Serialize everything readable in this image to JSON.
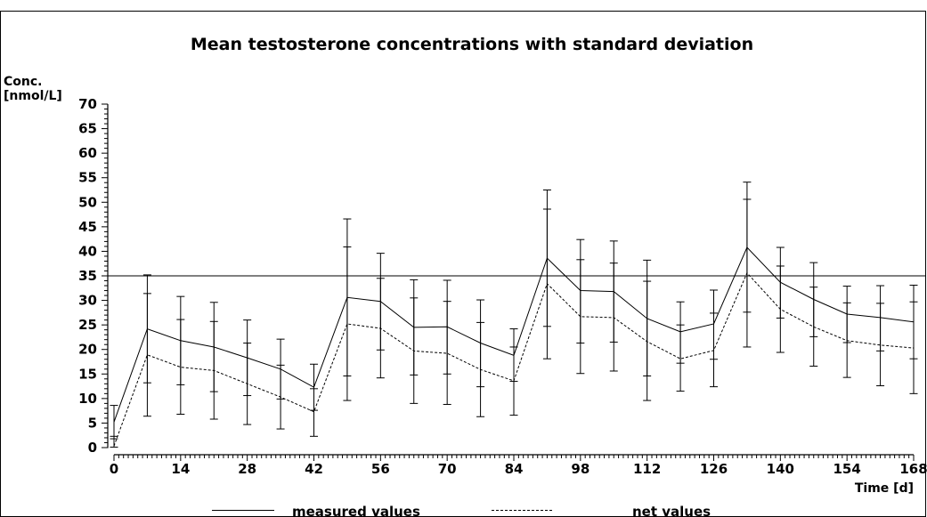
{
  "chart_data": {
    "type": "line",
    "title": "Mean testosterone concentrations with standard deviation",
    "ylabel_line1": "Conc.",
    "ylabel_line2": "[nmol/L]",
    "xlabel": "Time  [d]",
    "xlim": [
      0,
      168
    ],
    "ylim": [
      0,
      70
    ],
    "x_ticks": [
      0,
      14,
      28,
      42,
      56,
      70,
      84,
      98,
      112,
      126,
      140,
      154,
      168
    ],
    "y_ticks": [
      0,
      5,
      10,
      15,
      20,
      25,
      30,
      35,
      40,
      45,
      50,
      55,
      60,
      65,
      70
    ],
    "reference_line": 35,
    "x": [
      0,
      7,
      14,
      21,
      28,
      35,
      42,
      49,
      56,
      63,
      70,
      77,
      84,
      91,
      98,
      105,
      112,
      119,
      126,
      133,
      140,
      147,
      154,
      161,
      168
    ],
    "series": [
      {
        "name": "measured values",
        "style": "solid",
        "values": [
          5.2,
          24.2,
          21.8,
          20.5,
          18.3,
          16.0,
          12.3,
          30.6,
          29.8,
          24.5,
          24.6,
          21.3,
          18.8,
          38.6,
          32.0,
          31.8,
          26.3,
          23.6,
          25.2,
          40.8,
          33.7,
          30.2,
          27.2,
          26.5,
          25.6
        ],
        "sd_low": [
          1.8,
          13.2,
          12.8,
          11.4,
          10.6,
          9.9,
          7.6,
          14.6,
          19.9,
          14.8,
          15.0,
          12.4,
          13.5,
          24.7,
          21.3,
          21.5,
          14.6,
          17.2,
          18.0,
          27.6,
          26.4,
          22.6,
          21.4,
          19.7,
          18.1
        ],
        "sd_high": [
          8.6,
          35.2,
          30.8,
          29.6,
          26.0,
          22.1,
          17.0,
          46.6,
          39.6,
          34.2,
          34.1,
          30.1,
          24.2,
          52.5,
          42.4,
          42.1,
          38.2,
          29.7,
          32.1,
          54.1,
          40.8,
          37.7,
          32.9,
          33.0,
          33.1
        ]
      },
      {
        "name": "net values",
        "style": "dashed",
        "values": [
          0.3,
          18.9,
          16.4,
          15.7,
          13.0,
          10.3,
          7.3,
          25.2,
          24.3,
          19.7,
          19.2,
          15.9,
          13.6,
          33.4,
          26.7,
          26.5,
          21.6,
          18.1,
          19.8,
          35.6,
          28.2,
          24.6,
          21.8,
          20.9,
          20.3
        ],
        "sd_low": [
          0.1,
          6.4,
          6.8,
          5.8,
          4.7,
          3.8,
          2.3,
          9.6,
          14.2,
          9.0,
          8.8,
          6.3,
          6.6,
          18.1,
          15.1,
          15.6,
          9.6,
          11.5,
          12.4,
          20.5,
          19.4,
          16.6,
          14.3,
          12.6,
          11.0
        ],
        "sd_high": [
          2.3,
          31.4,
          26.1,
          25.7,
          21.3,
          16.8,
          12.0,
          40.9,
          34.5,
          30.5,
          29.8,
          25.5,
          20.5,
          48.6,
          38.3,
          37.6,
          33.9,
          25.0,
          27.4,
          50.6,
          37.0,
          32.7,
          29.5,
          29.4,
          29.7
        ]
      }
    ],
    "legend": {
      "placement": "bottom"
    },
    "grid": false
  }
}
